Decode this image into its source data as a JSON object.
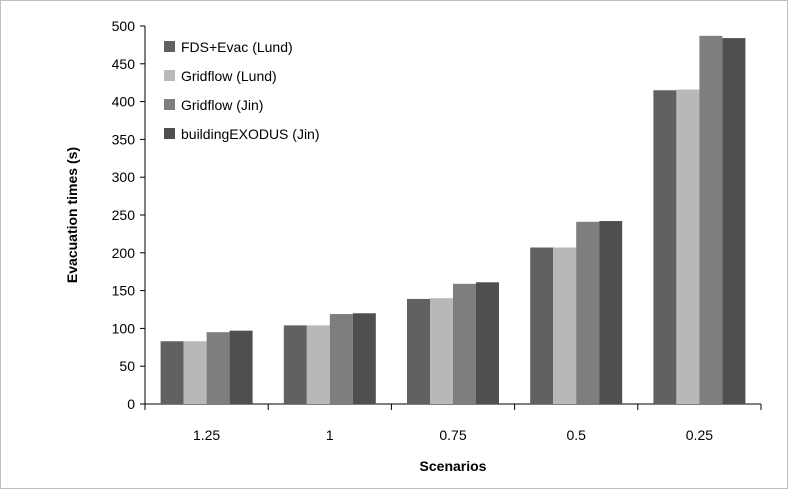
{
  "chart_data": {
    "type": "bar",
    "title": "",
    "xlabel": "Scenarios",
    "ylabel": "Evacuation times (s)",
    "ylim": [
      0,
      500
    ],
    "yticks": [
      0,
      50,
      100,
      150,
      200,
      250,
      300,
      350,
      400,
      450,
      500
    ],
    "grid": false,
    "legend_position": "top-left",
    "categories": [
      "1.25",
      "1",
      "0.75",
      "0.5",
      "0.25"
    ],
    "series": [
      {
        "name": "FDS+Evac (Lund)",
        "color": "#616161",
        "values": [
          83,
          104,
          139,
          207,
          415
        ]
      },
      {
        "name": "Gridflow (Lund)",
        "color": "#b8b8b8",
        "values": [
          83,
          104,
          140,
          207,
          416
        ]
      },
      {
        "name": "Gridflow (Jin)",
        "color": "#7e7e7e",
        "values": [
          95,
          119,
          159,
          241,
          487
        ]
      },
      {
        "name": "buildingEXODUS (Jin)",
        "color": "#4f4f4f",
        "values": [
          97,
          120,
          161,
          242,
          484
        ]
      }
    ]
  }
}
